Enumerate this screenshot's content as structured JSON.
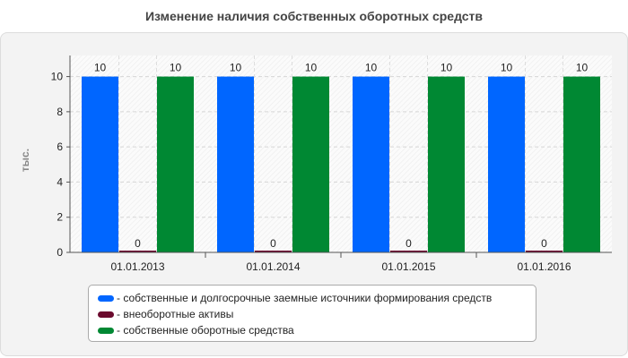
{
  "chart_data": {
    "type": "bar",
    "title": "Изменение наличия собственных оборотных средств",
    "ylabel": "тыс.",
    "xlabel": "",
    "categories": [
      "01.01.2013",
      "01.01.2014",
      "01.01.2015",
      "01.01.2016"
    ],
    "series": [
      {
        "name": "- собственные и долгосрочные заемные источники формирования средств",
        "values": [
          10,
          10,
          10,
          10
        ],
        "color": "#0066ff"
      },
      {
        "name": "- внеоборотные активы",
        "values": [
          0,
          0,
          0,
          0
        ],
        "color": "#6b0b2e"
      },
      {
        "name": "- собственные оборотные средства",
        "values": [
          10,
          10,
          10,
          10
        ],
        "color": "#008833"
      }
    ],
    "ylim": [
      0,
      11.2
    ],
    "yticks": [
      0,
      2,
      4,
      6,
      8,
      10
    ],
    "grid": true,
    "legend_position": "bottom"
  }
}
